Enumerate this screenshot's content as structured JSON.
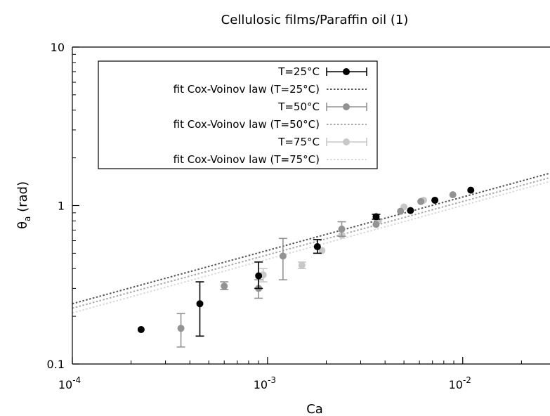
{
  "chart_data": {
    "type": "scatter",
    "title": "Cellulosic films/Paraffin oil (1)",
    "xlabel": "Ca",
    "ylabel": {
      "base": "θ",
      "sub": "a",
      "rest": " (rad)"
    },
    "xscale": "log",
    "yscale": "log",
    "xlim": [
      0.0001,
      0.028
    ],
    "ylim": [
      0.1,
      10
    ],
    "x_ticks": [
      {
        "value": 0.0001,
        "base": "10",
        "exp": "-4"
      },
      {
        "value": 0.001,
        "base": "10",
        "exp": "-3"
      },
      {
        "value": 0.01,
        "base": "10",
        "exp": "-2"
      }
    ],
    "y_ticks": [
      {
        "value": 0.1,
        "label": "0.1"
      },
      {
        "value": 1,
        "label": "1"
      },
      {
        "value": 10,
        "label": "10"
      }
    ],
    "grid": false,
    "legend_position": "top-left",
    "colors": {
      "s25": "#000000",
      "s50": "#939393",
      "s75": "#c8c8c8",
      "f25": "#555555",
      "f50": "#a9a9a9",
      "f75": "#d9d9d9"
    },
    "series": [
      {
        "name": "T=25°C",
        "style": "points-errorbars",
        "color": "#000000",
        "points": [
          {
            "x": 0.000225,
            "y": 0.165
          },
          {
            "x": 0.00045,
            "y": 0.24,
            "ylo": 0.15,
            "yhi": 0.33
          },
          {
            "x": 0.0009,
            "y": 0.36,
            "ylo": 0.3,
            "yhi": 0.44
          },
          {
            "x": 0.0018,
            "y": 0.55,
            "ylo": 0.5,
            "yhi": 0.61
          },
          {
            "x": 0.0036,
            "y": 0.85,
            "ylo": 0.82,
            "yhi": 0.88
          },
          {
            "x": 0.0054,
            "y": 0.93
          },
          {
            "x": 0.0072,
            "y": 1.08
          },
          {
            "x": 0.011,
            "y": 1.25
          }
        ]
      },
      {
        "name": "fit Cox-Voinov law (T=25°C)",
        "style": "dotted-line",
        "color": "#555555",
        "x": [
          0.0001,
          0.028
        ],
        "y": [
          0.24,
          1.6
        ]
      },
      {
        "name": "T=50°C",
        "style": "points-errorbars",
        "color": "#939393",
        "points": [
          {
            "x": 0.00036,
            "y": 0.168,
            "ylo": 0.128,
            "yhi": 0.208
          },
          {
            "x": 0.0006,
            "y": 0.31,
            "ylo": 0.295,
            "yhi": 0.33
          },
          {
            "x": 0.0009,
            "y": 0.3,
            "ylo": 0.26,
            "yhi": 0.34
          },
          {
            "x": 0.0012,
            "y": 0.48,
            "ylo": 0.34,
            "yhi": 0.62
          },
          {
            "x": 0.0024,
            "y": 0.71,
            "ylo": 0.64,
            "yhi": 0.79
          },
          {
            "x": 0.0036,
            "y": 0.76
          },
          {
            "x": 0.0048,
            "y": 0.92
          },
          {
            "x": 0.0061,
            "y": 1.06
          },
          {
            "x": 0.0089,
            "y": 1.17
          }
        ]
      },
      {
        "name": "fit Cox-Voinov law (T=50°C)",
        "style": "dotted-line",
        "color": "#a9a9a9",
        "x": [
          0.0001,
          0.028
        ],
        "y": [
          0.225,
          1.5
        ]
      },
      {
        "name": "T=75°C",
        "style": "points-errorbars",
        "color": "#c8c8c8",
        "points": [
          {
            "x": 0.00095,
            "y": 0.365,
            "ylo": 0.33,
            "yhi": 0.4
          },
          {
            "x": 0.0015,
            "y": 0.42,
            "ylo": 0.4,
            "yhi": 0.44
          },
          {
            "x": 0.0019,
            "y": 0.52
          },
          {
            "x": 0.0024,
            "y": 0.65
          },
          {
            "x": 0.0037,
            "y": 0.8
          },
          {
            "x": 0.005,
            "y": 0.98
          },
          {
            "x": 0.0063,
            "y": 1.08
          }
        ]
      },
      {
        "name": "fit Cox-Voinov law (T=75°C)",
        "style": "dotted-line",
        "color": "#d9d9d9",
        "x": [
          0.0001,
          0.028
        ],
        "y": [
          0.21,
          1.42
        ]
      }
    ]
  }
}
